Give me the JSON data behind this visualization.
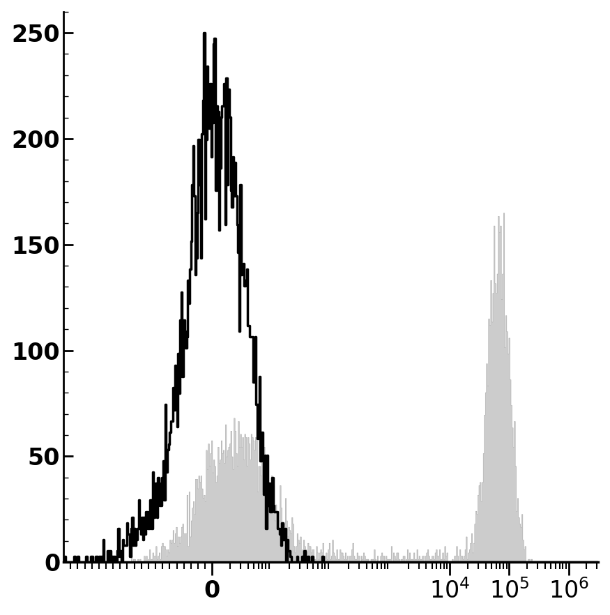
{
  "title": "",
  "xlabel": "",
  "ylabel": "",
  "ylim": [
    0,
    260
  ],
  "yticks": [
    0,
    50,
    100,
    150,
    200,
    250
  ],
  "background_color": "#ffffff",
  "black_histogram_color": "#000000",
  "gray_histogram_color": "#cccccc",
  "gray_histogram_edge": "#999999",
  "linewidth_black": 2.5,
  "display_min": -2.5,
  "display_max": 6.5,
  "note": "Biexponential x-axis. Black peak is near display=-0.3 (slightly neg), gray peak1 near display=0.2, gray peak2 near display=4.8. 0->0, 10^4->4, 10^5->5, 10^6->6 in display coords. Neg region: linear scaled so -1000 maps to about -1.5 display units."
}
